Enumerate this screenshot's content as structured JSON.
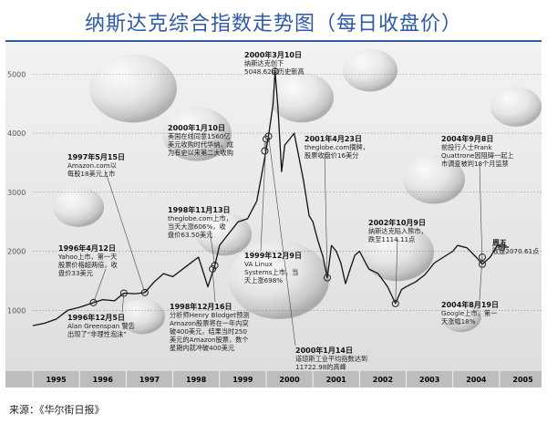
{
  "page": {
    "title": "纳斯达克综合指数走势图（每日收盘价）",
    "source": "来源：《华尔街日报》"
  },
  "chart_data": {
    "type": "line",
    "title": "纳斯达克综合指数走势图（每日收盘价）",
    "xlabel": "",
    "ylabel": "",
    "x_ticks": [
      "1995",
      "1996",
      "1997",
      "1998",
      "1999",
      "2000",
      "2001",
      "2002",
      "2003",
      "2004",
      "2005"
    ],
    "xlim": [
      1995.0,
      2005.9
    ],
    "y_ticks": [
      1000,
      2000,
      3000,
      4000,
      5000
    ],
    "ylim": [
      0,
      5500
    ],
    "grid": "horizontal-dotted",
    "line_color": "#111111",
    "series": [
      {
        "x": [
          1995.0,
          1995.25,
          1995.5,
          1995.75,
          1996.0,
          1996.3,
          1996.5,
          1996.75,
          1996.95,
          1997.2,
          1997.4,
          1997.6,
          1997.8,
          1998.0,
          1998.3,
          1998.55,
          1998.75,
          1998.9,
          1999.0,
          1999.2,
          1999.4,
          1999.6,
          1999.8,
          1999.95,
          2000.05,
          2000.15,
          2000.19,
          2000.25,
          2000.33,
          2000.4,
          2000.5,
          2000.6,
          2000.7,
          2000.8,
          2000.92,
          2001.0,
          2001.1,
          2001.22,
          2001.31,
          2001.4,
          2001.5,
          2001.6,
          2001.7,
          2001.8,
          2001.9,
          2002.0,
          2002.2,
          2002.4,
          2002.6,
          2002.77,
          2002.9,
          2003.0,
          2003.2,
          2003.4,
          2003.6,
          2003.8,
          2004.0,
          2004.1,
          2004.3,
          2004.5,
          2004.63,
          2004.8,
          2004.95,
          2005.05,
          2005.2
        ],
        "y": [
          740,
          780,
          850,
          1000,
          1050,
          1130,
          1180,
          1160,
          1290,
          1280,
          1300,
          1480,
          1620,
          1570,
          1750,
          1900,
          1400,
          1760,
          2100,
          2300,
          2500,
          2550,
          2850,
          3500,
          3950,
          4500,
          5048,
          4450,
          3350,
          3800,
          3900,
          4000,
          3600,
          3200,
          2600,
          2500,
          2200,
          1900,
          1550,
          2100,
          2000,
          1800,
          1450,
          1700,
          1930,
          2000,
          1700,
          1620,
          1400,
          1114,
          1350,
          1400,
          1480,
          1600,
          1800,
          1900,
          2000,
          2100,
          2060,
          1900,
          1780,
          1900,
          2100,
          2070,
          2070
        ]
      }
    ],
    "annotations": [
      {
        "title": "1996年4月12日",
        "lines": [
          "Yahoo上市，第一天",
          "股票价格超两倍，收",
          "盘价33美元"
        ]
      },
      {
        "title": "1996年12月5日",
        "lines": [
          "Alan Greenspan 警告",
          "出现了“非理性泡沫”"
        ]
      },
      {
        "title": "1997年5月15日",
        "lines": [
          "Amazon.com以",
          "每股18美元上市"
        ]
      },
      {
        "title": "1998年11月13日",
        "lines": [
          "theglobe.com上市，",
          "当天大涨606%，收",
          "盘价63.50美元"
        ]
      },
      {
        "title": "1998年12月16日",
        "lines": [
          "分析师Henry Blodget预测",
          "Amazon股票将在一年内突",
          "破400美元，结果当时250",
          "美元的Amazon股票，数个",
          "星期内就冲破400美元"
        ]
      },
      {
        "title": "2000年1月10日",
        "lines": [
          "美国在线同意1560亿",
          "美元收购时代华纳，成",
          "为有史以来第二大收购"
        ]
      },
      {
        "title": "2000年3月10日",
        "lines": [
          "纳斯达克创下",
          "5048.62点历史新高"
        ]
      },
      {
        "title": "1999年12月9日",
        "lines": [
          "VA Linux",
          "Systems上市，当",
          "天上涨698%"
        ]
      },
      {
        "title": "2000年1月14日",
        "lines": [
          "道琼斯工业平均指数达到",
          "11722.98的高峰"
        ]
      },
      {
        "title": "2001年4月23日",
        "lines": [
          "theglobe.com摘牌，",
          "股票收盘价16美分"
        ]
      },
      {
        "title": "2002年10月9日",
        "lines": [
          "纳斯达克陷入熊市，",
          "跌至1114.11点"
        ]
      },
      {
        "title": "2004年9月8日",
        "lines": [
          "前投行人士Frank",
          "Quattrone因阻碍一起上",
          "市调查被判18个月监禁"
        ]
      },
      {
        "title": "周五",
        "lines": [
          "收盘2070.61点"
        ]
      },
      {
        "title": "2004年8月19日",
        "lines": [
          "Google上市，第一",
          "天涨幅18%"
        ]
      }
    ]
  }
}
